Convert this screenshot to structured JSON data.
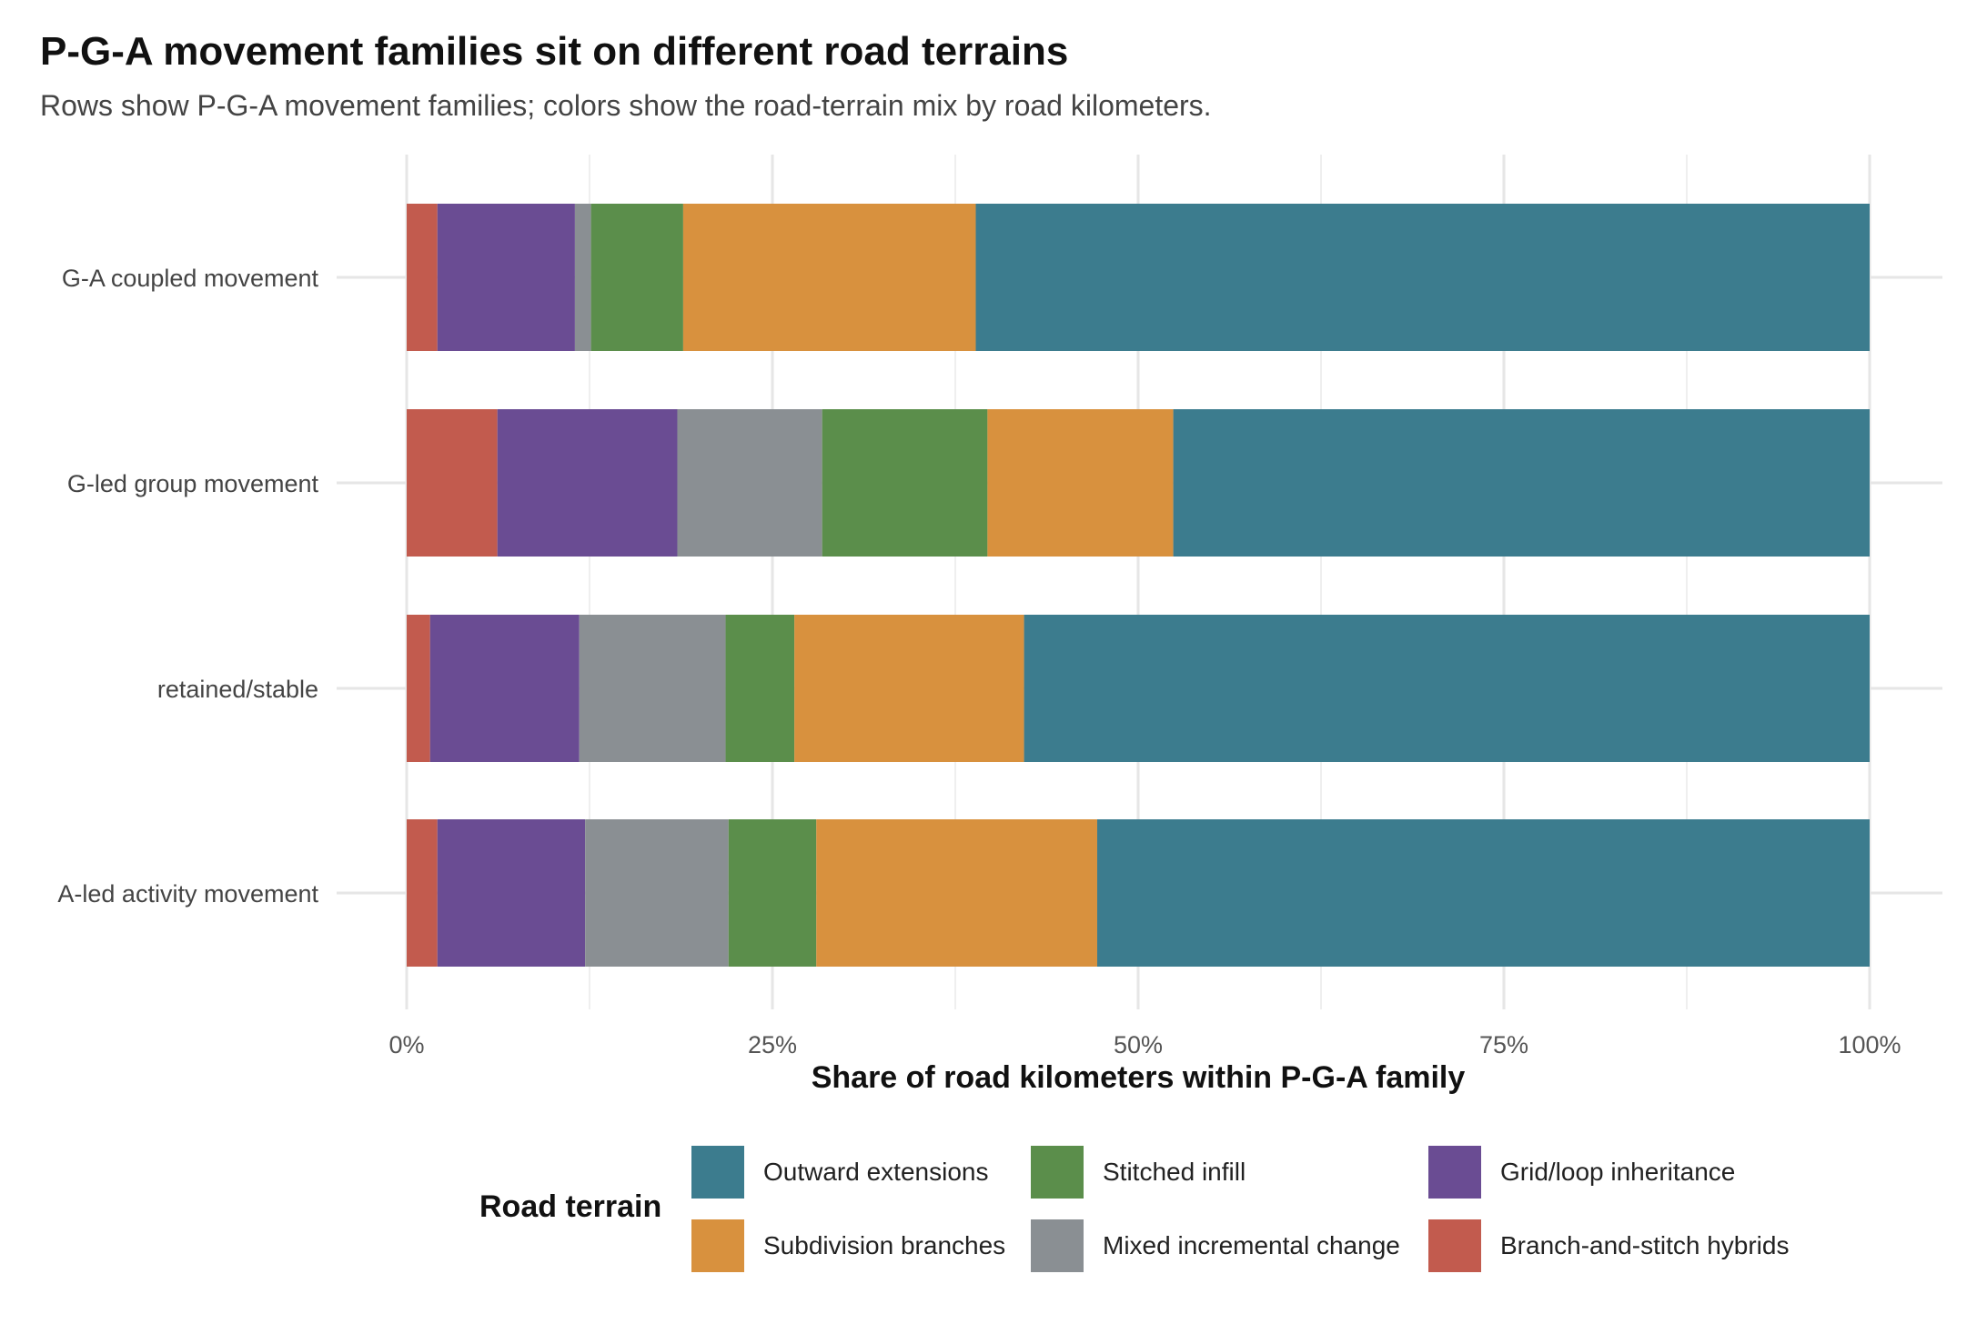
{
  "title": "P-G-A movement families sit on different road terrains",
  "subtitle": "Rows show P-G-A movement families; colors show the road-terrain mix by road kilometers.",
  "chart_data": {
    "type": "bar",
    "orientation": "horizontal",
    "stacked": true,
    "categories": [
      "G-A coupled movement",
      "G-led group movement",
      "retained/stable",
      "A-led activity movement"
    ],
    "series": [
      {
        "name": "Branch-and-stitch hybrids",
        "color": "#C25B4E",
        "values": [
          2.1,
          6.2,
          1.6,
          2.1
        ]
      },
      {
        "name": "Grid/loop inheritance",
        "color": "#6A4C93",
        "values": [
          9.4,
          12.3,
          10.2,
          10.1
        ]
      },
      {
        "name": "Mixed incremental change",
        "color": "#8A8F93",
        "values": [
          1.1,
          9.9,
          10.0,
          9.8
        ]
      },
      {
        "name": "Stitched infill",
        "color": "#5B8E4B",
        "values": [
          6.3,
          11.3,
          4.7,
          6.0
        ]
      },
      {
        "name": "Subdivision branches",
        "color": "#D8913E",
        "values": [
          20.0,
          12.7,
          15.7,
          19.2
        ]
      },
      {
        "name": "Outward extensions",
        "color": "#3C7C8E",
        "values": [
          61.1,
          47.6,
          57.8,
          52.8
        ]
      }
    ],
    "xlabel": "Share of road kilometers within P-G-A family",
    "ylabel": "",
    "xlim": [
      0,
      100
    ],
    "x_ticks": [
      "0%",
      "25%",
      "50%",
      "75%",
      "100%"
    ],
    "grid": true,
    "legend": {
      "title": "Road terrain",
      "placement": "bottom",
      "order": [
        "Outward extensions",
        "Subdivision branches",
        "Stitched infill",
        "Mixed incremental change",
        "Grid/loop inheritance",
        "Branch-and-stitch hybrids"
      ]
    }
  }
}
